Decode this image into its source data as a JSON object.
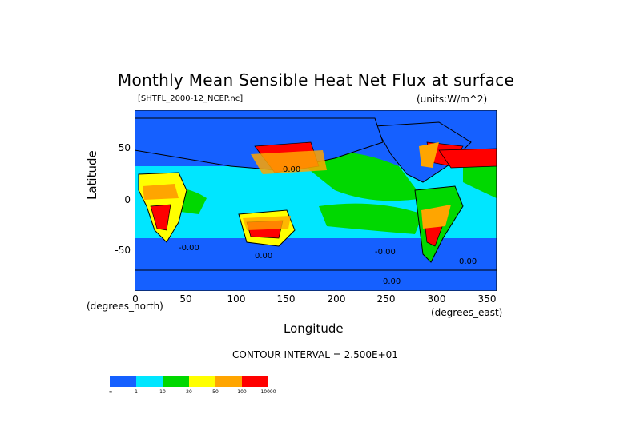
{
  "title": "Monthly Mean Sensible Heat Net Flux at surface",
  "file_label": "[SHTFL_2000-12_NCEP.nc]",
  "units_label": "(units:W/m^2)",
  "y_axis": {
    "label": "Latitude",
    "unit": "(degrees_north)",
    "ticks": [
      "50",
      "0",
      "-50"
    ]
  },
  "x_axis": {
    "label": "Longitude",
    "unit": "(degrees_east)",
    "ticks": [
      "0",
      "50",
      "100",
      "150",
      "200",
      "250",
      "300",
      "350"
    ]
  },
  "contour_interval": "CONTOUR INTERVAL = 2.500E+01",
  "colorbar": {
    "colors": [
      "#1560ff",
      "#00e6ff",
      "#00d800",
      "#ffff00",
      "#ffa500",
      "#ff0000"
    ],
    "labels": [
      "-∞",
      "1",
      "10",
      "20",
      "50",
      "100",
      "10000"
    ]
  },
  "map_annotations": [
    "-0.00",
    "0.00",
    "0.00",
    "-0.00",
    "0.00",
    "0.00"
  ],
  "colors": {
    "land_outline": "#000000",
    "ocean_base": "#1560ff"
  }
}
